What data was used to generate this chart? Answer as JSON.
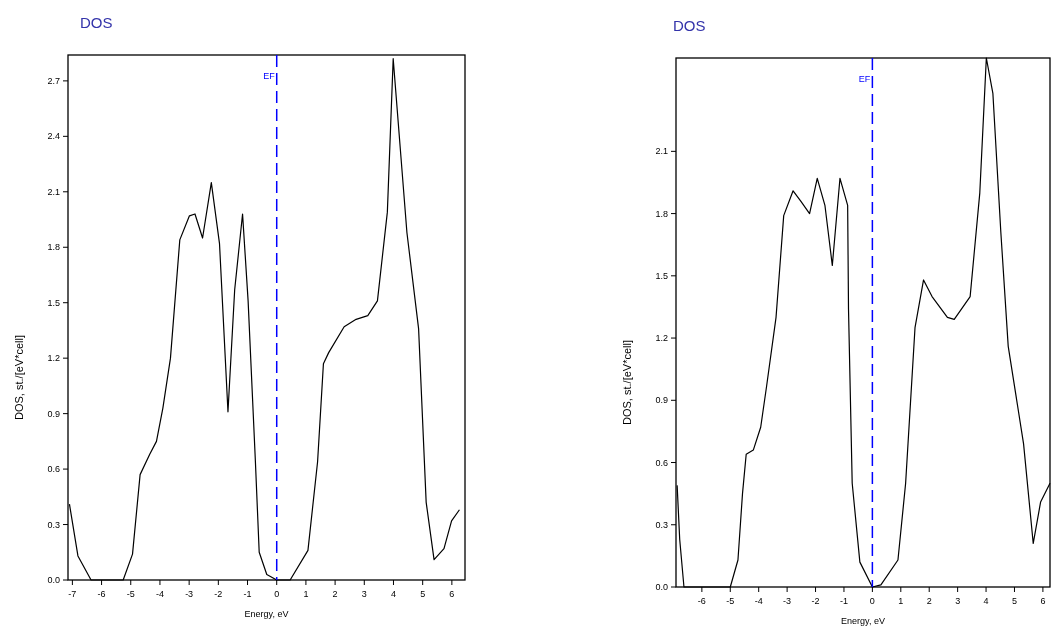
{
  "chart_data": [
    {
      "type": "line",
      "title": "DOS",
      "xlabel": "Energy, eV",
      "ylabel": "DOS, st./[eV*cell]",
      "xlim": [
        -7.15,
        6.45
      ],
      "ylim": [
        0,
        2.84
      ],
      "xticks": [
        -7,
        -6,
        -5,
        -4,
        -3,
        -2,
        -1,
        0,
        1,
        2,
        3,
        4,
        5,
        6
      ],
      "yticks": [
        {
          "value": 0,
          "label": "0.0"
        },
        0.3,
        0.6,
        0.9,
        1.2,
        1.5,
        1.8,
        2.1,
        2.4,
        2.7
      ],
      "ref_lines": [
        {
          "axis": "x",
          "value": 0,
          "label": "EF",
          "color": "#0000ff",
          "line_style": "dashed"
        }
      ],
      "series": [
        {
          "color": "#000000",
          "x": [
            -7.1,
            -6.81,
            -6.36,
            -5.26,
            -4.94,
            -4.68,
            -4.35,
            -4.12,
            -3.9,
            -3.64,
            -3.32,
            -2.99,
            -2.8,
            -2.54,
            -2.24,
            -1.96,
            -1.67,
            -1.44,
            -1.17,
            -0.98,
            -0.73,
            -0.6,
            -0.34,
            0,
            0.46,
            1.07,
            1.4,
            1.6,
            1.78,
            2.31,
            2.72,
            3.12,
            3.45,
            3.79,
            3.99,
            4.46,
            4.86,
            5.12,
            5.39,
            5.73,
            5.99,
            6.26
          ],
          "values": [
            0.41,
            0.13,
            0,
            0,
            0.14,
            0.57,
            0.68,
            0.75,
            0.93,
            1.2,
            1.84,
            1.97,
            1.98,
            1.85,
            2.15,
            1.82,
            0.91,
            1.57,
            1.98,
            1.51,
            0.64,
            0.15,
            0.03,
            0,
            0,
            0.16,
            0.64,
            1.17,
            1.23,
            1.37,
            1.41,
            1.43,
            1.51,
            1.99,
            2.82,
            1.88,
            1.36,
            0.42,
            0.11,
            0.17,
            0.32,
            0.38
          ]
        }
      ]
    },
    {
      "type": "line",
      "title": "DOS",
      "xlabel": "Energy, eV",
      "ylabel": "DOS, st./[eV*cell]",
      "xlim": [
        -6.91,
        6.25
      ],
      "ylim": [
        0,
        2.55
      ],
      "xticks": [
        -6,
        -5,
        -4,
        -3,
        -2,
        -1,
        0,
        1,
        2,
        3,
        4,
        5,
        6
      ],
      "yticks": [
        {
          "value": 0,
          "label": "0.0"
        },
        0.3,
        0.6,
        0.9,
        1.2,
        1.5,
        1.8,
        2.1
      ],
      "ref_lines": [
        {
          "axis": "x",
          "value": 0,
          "label": "EF",
          "color": "#0000ff",
          "line_style": "dashed"
        }
      ],
      "series": [
        {
          "color": "#000000",
          "x": [
            -6.87,
            -6.78,
            -6.63,
            -5.0,
            -4.73,
            -4.57,
            -4.44,
            -4.19,
            -3.93,
            -3.72,
            -3.39,
            -3.12,
            -2.79,
            -2.52,
            -2.21,
            -1.94,
            -1.67,
            -1.41,
            -1.14,
            -0.87,
            -0.84,
            -0.71,
            -0.44,
            0,
            0.3,
            0.9,
            1.17,
            1.5,
            1.8,
            2.1,
            2.64,
            2.88,
            3.44,
            3.78,
            4.01,
            4.24,
            4.52,
            4.78,
            5.32,
            5.66,
            5.92,
            6.25
          ],
          "values": [
            0.49,
            0.23,
            0,
            0,
            0.13,
            0.45,
            0.64,
            0.66,
            0.77,
            0.97,
            1.3,
            1.79,
            1.91,
            1.86,
            1.8,
            1.97,
            1.84,
            1.55,
            1.97,
            1.84,
            1.34,
            0.5,
            0.12,
            0,
            0.01,
            0.13,
            0.5,
            1.25,
            1.48,
            1.4,
            1.3,
            1.29,
            1.4,
            1.9,
            2.55,
            2.38,
            1.71,
            1.16,
            0.69,
            0.21,
            0.41,
            0.5
          ]
        }
      ]
    }
  ]
}
